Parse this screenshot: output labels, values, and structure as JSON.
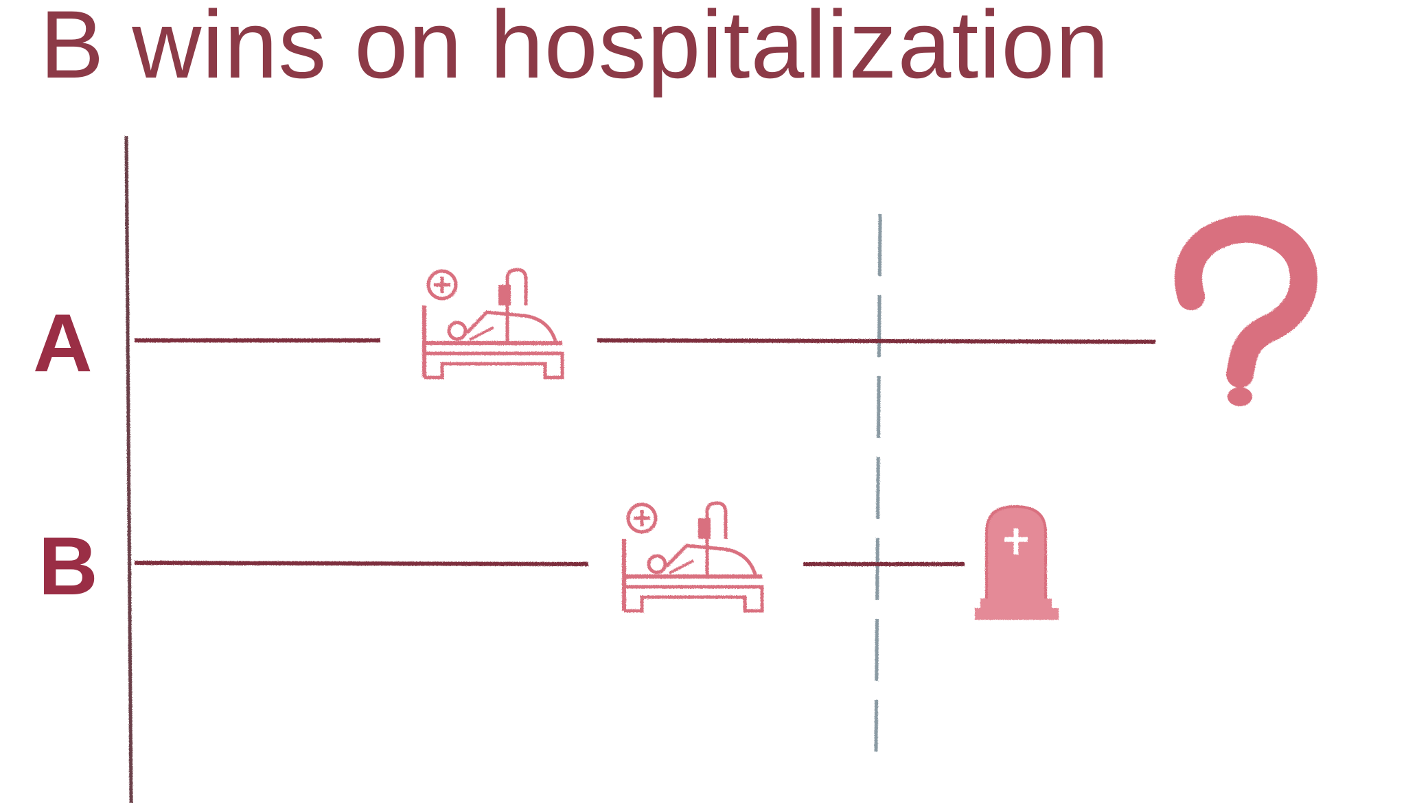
{
  "title": "B wins on hospitalization",
  "rows": [
    {
      "label": "A",
      "events": [
        "hospital-bed",
        "question-mark"
      ]
    },
    {
      "label": "B",
      "events": [
        "hospital-bed",
        "tombstone"
      ]
    }
  ],
  "colors": {
    "title": "#8c3a47",
    "row_label": "#9a2e45",
    "timeline": "#7d2f3c",
    "axis": "#6b3f48",
    "icon": "#d9707f",
    "cutoff_line": "#8a9aa3"
  },
  "icons": {
    "hospital": "hospital-bed-icon",
    "unknown": "question-mark-icon",
    "death": "tombstone-icon"
  }
}
